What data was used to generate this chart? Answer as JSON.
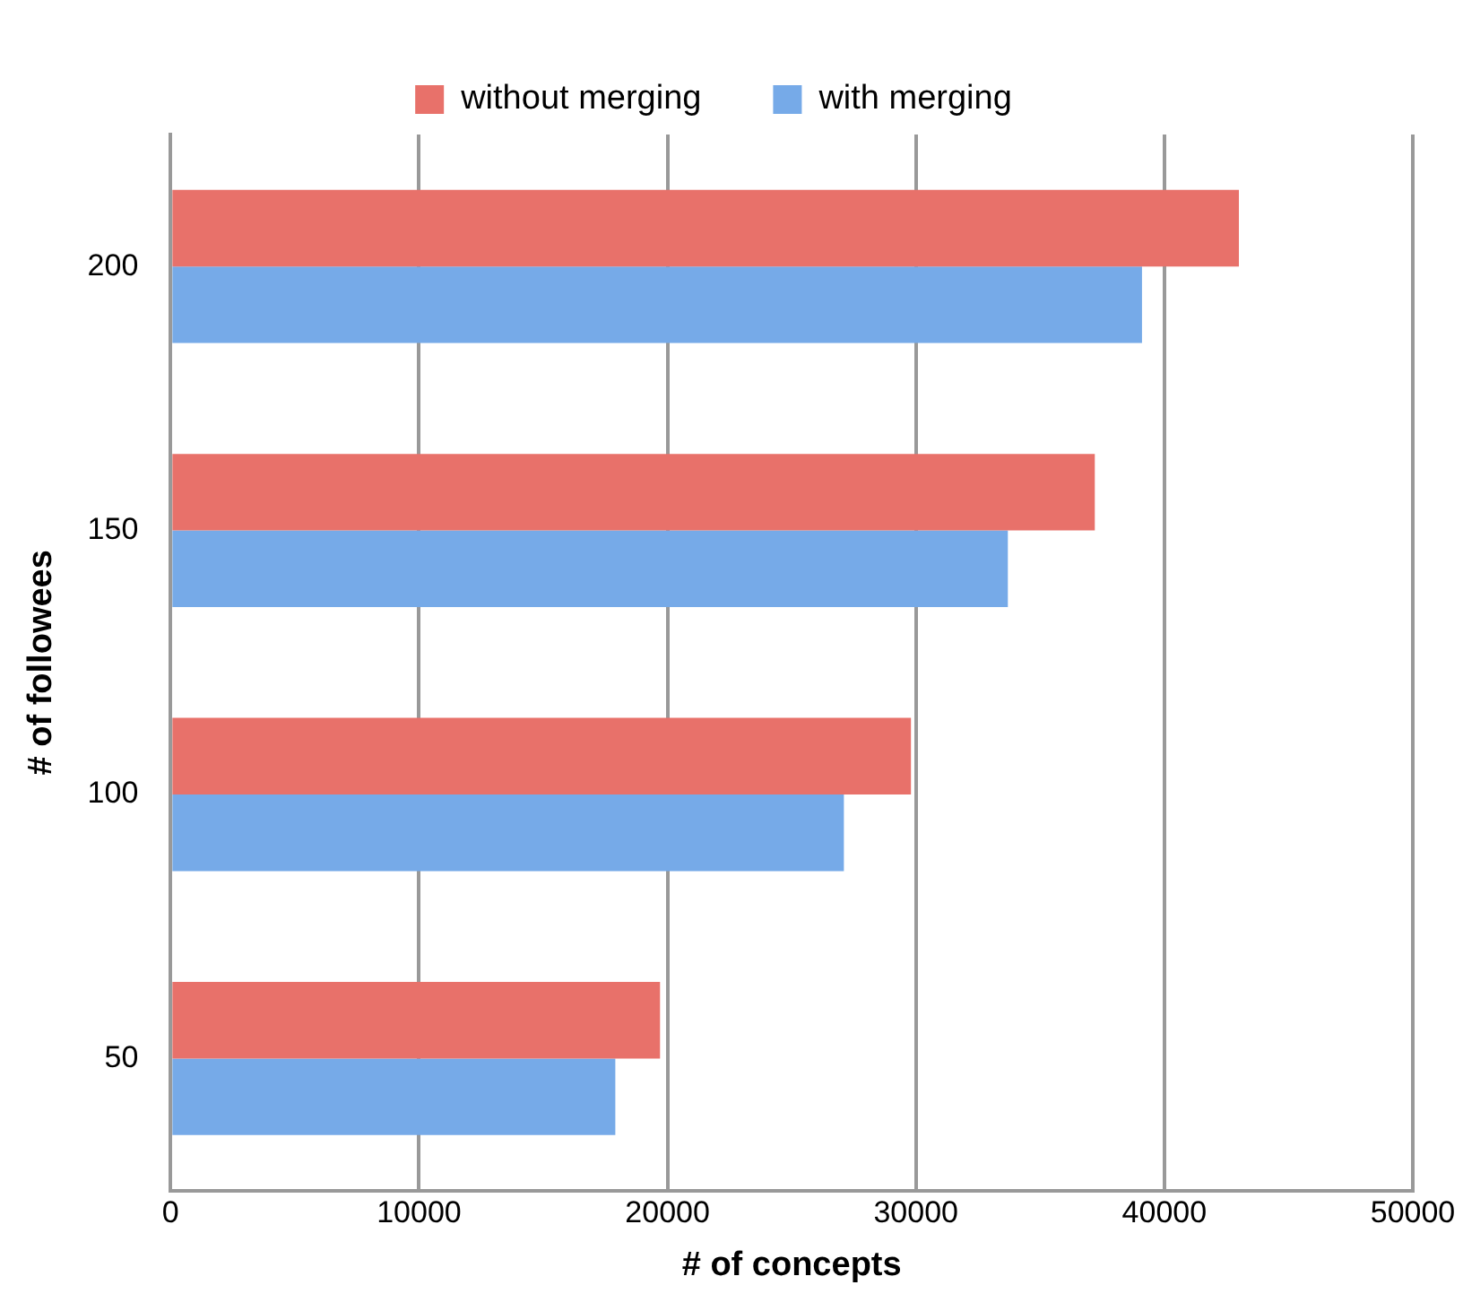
{
  "chart_data": {
    "type": "bar",
    "orientation": "horizontal",
    "xlabel": "# of concepts",
    "ylabel": "# of followees",
    "categories": [
      "200",
      "150",
      "100",
      "50"
    ],
    "series": [
      {
        "name": "without merging",
        "color": "#e8716a",
        "values": [
          43000,
          37200,
          29800,
          19700
        ]
      },
      {
        "name": "with merging",
        "color": "#76aae8",
        "values": [
          39100,
          33700,
          27100,
          17900
        ]
      }
    ],
    "xlim": [
      0,
      50000
    ],
    "xticks": [
      0,
      10000,
      20000,
      30000,
      40000,
      50000
    ],
    "grid": "x",
    "legend": "top"
  }
}
